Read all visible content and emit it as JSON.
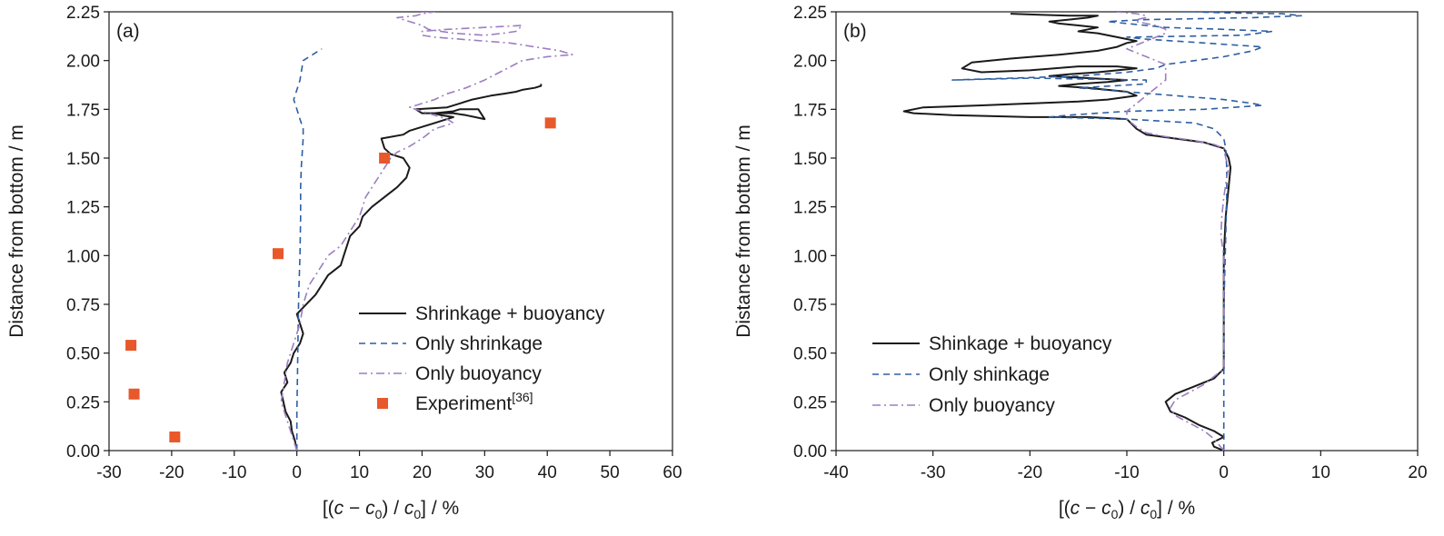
{
  "chart_data": [
    {
      "type": "line",
      "panel_label": "(a)",
      "xlabel": "[(c − c0) / c0] / %",
      "ylabel": "Distance from bottom / m",
      "xlim": [
        -30,
        60
      ],
      "ylim": [
        0,
        2.25
      ],
      "xticks": [
        -30,
        -20,
        -10,
        0,
        10,
        20,
        30,
        40,
        50,
        60
      ],
      "yticks": [
        0,
        0.25,
        0.5,
        0.75,
        1.0,
        1.25,
        1.5,
        1.75,
        2.0,
        2.25
      ],
      "grid": false,
      "legend_position": "lower-right",
      "series": [
        {
          "name": "Shrinkage + buoyancy",
          "style": "solid",
          "color": "#1a1a1a",
          "x": [
            0,
            -0.3,
            -0.8,
            -1,
            -1.8,
            -2.5,
            -1.5,
            -2,
            -1,
            -0.5,
            0.5,
            1,
            0,
            3,
            5,
            7,
            7.5,
            8,
            8.5,
            10,
            10.5,
            12,
            14,
            16,
            17.5,
            18,
            17,
            15,
            14,
            13.5,
            17,
            18,
            20,
            22,
            24,
            25,
            23,
            22,
            25,
            26,
            29,
            30,
            27,
            25,
            20,
            19,
            24,
            26,
            28,
            31,
            33,
            35,
            36,
            38,
            39,
            39
          ],
          "y": [
            0,
            0.05,
            0.1,
            0.15,
            0.2,
            0.3,
            0.35,
            0.4,
            0.45,
            0.5,
            0.55,
            0.6,
            0.7,
            0.8,
            0.9,
            0.95,
            1.0,
            1.05,
            1.1,
            1.15,
            1.2,
            1.25,
            1.3,
            1.35,
            1.4,
            1.45,
            1.5,
            1.52,
            1.55,
            1.6,
            1.62,
            1.64,
            1.66,
            1.68,
            1.7,
            1.71,
            1.72,
            1.73,
            1.74,
            1.75,
            1.75,
            1.7,
            1.72,
            1.73,
            1.73,
            1.75,
            1.76,
            1.78,
            1.8,
            1.82,
            1.83,
            1.84,
            1.85,
            1.86,
            1.87,
            1.88
          ]
        },
        {
          "name": "Only shrinkage",
          "style": "dash",
          "color": "#2e5fa3",
          "x": [
            0,
            0,
            0.1,
            0.2,
            0.3,
            0.5,
            0.6,
            0.6,
            0.7,
            0.8,
            0.9,
            1,
            1,
            0.5,
            0,
            -0.5,
            0,
            0.5,
            1,
            2,
            3,
            4
          ],
          "y": [
            0,
            0.2,
            0.4,
            0.6,
            0.8,
            1.0,
            1.2,
            1.35,
            1.45,
            1.5,
            1.55,
            1.6,
            1.65,
            1.7,
            1.75,
            1.8,
            1.85,
            1.9,
            2.0,
            2.02,
            2.04,
            2.06
          ]
        },
        {
          "name": "Only buoyancy",
          "style": "dashdot",
          "color": "#9b7ec0",
          "x": [
            0,
            -0.5,
            -1.5,
            -2.5,
            -2,
            -1.5,
            -0.5,
            0.5,
            1,
            2,
            3,
            4,
            5,
            7,
            8,
            9,
            10,
            10.5,
            11,
            12,
            13,
            14,
            15,
            16,
            18,
            20,
            22,
            25,
            24,
            22,
            20,
            18,
            20,
            22,
            24,
            27,
            30,
            33,
            36,
            40,
            44,
            42,
            38,
            34,
            30,
            26,
            22,
            20,
            20,
            24,
            30,
            36,
            35,
            33,
            30,
            25,
            21,
            20,
            19,
            18,
            17,
            16,
            19,
            20,
            21,
            22,
            21,
            20,
            21
          ],
          "y": [
            0,
            0.05,
            0.15,
            0.25,
            0.35,
            0.45,
            0.55,
            0.65,
            0.75,
            0.85,
            0.9,
            0.95,
            1.0,
            1.05,
            1.1,
            1.15,
            1.2,
            1.25,
            1.3,
            1.35,
            1.4,
            1.45,
            1.5,
            1.53,
            1.56,
            1.6,
            1.65,
            1.68,
            1.7,
            1.72,
            1.74,
            1.76,
            1.78,
            1.8,
            1.83,
            1.86,
            1.9,
            1.95,
            2.0,
            2.02,
            2.03,
            2.05,
            2.07,
            2.09,
            2.1,
            2.11,
            2.12,
            2.13,
            2.15,
            2.16,
            2.17,
            2.18,
            2.15,
            2.14,
            2.13,
            2.14,
            2.16,
            2.18,
            2.19,
            2.2,
            2.21,
            2.22,
            2.23,
            2.24,
            2.245,
            2.25,
            2.25,
            2.25,
            2.25
          ]
        },
        {
          "name": "Experiment[36]",
          "style": "marker",
          "color": "#e8582b",
          "x": [
            -19.5,
            -26,
            -26.5,
            -3,
            14,
            40.5
          ],
          "y": [
            0.07,
            0.29,
            0.54,
            1.01,
            1.5,
            1.68
          ]
        }
      ]
    },
    {
      "type": "line",
      "panel_label": "(b)",
      "xlabel": "[(c − c0) / c0] / %",
      "ylabel": "Distance from bottom / m",
      "xlim": [
        -40,
        20
      ],
      "ylim": [
        0,
        2.25
      ],
      "xticks": [
        -40,
        -30,
        -20,
        -10,
        0,
        10,
        20
      ],
      "yticks": [
        0,
        0.25,
        0.5,
        0.75,
        1.0,
        1.25,
        1.5,
        1.75,
        2.0,
        2.25
      ],
      "grid": false,
      "legend_position": "lower-left",
      "series": [
        {
          "name": "Shinkage + buoyancy",
          "style": "solid",
          "color": "#1a1a1a",
          "x": [
            0,
            -1,
            -1.2,
            0,
            -1,
            -2.5,
            -4,
            -5.5,
            -6,
            -5,
            -3,
            -1,
            0,
            0,
            0,
            0,
            0.2,
            0.5,
            0.7,
            0.5,
            0,
            -2,
            -5,
            -8,
            -9,
            -10,
            -14,
            -20,
            -28,
            -32,
            -33,
            -31,
            -25,
            -20,
            -15,
            -12,
            -9,
            -10,
            -14,
            -17,
            -15,
            -12,
            -10,
            -14,
            -18,
            -16,
            -13,
            -11,
            -9,
            -11,
            -15,
            -20,
            -25,
            -27,
            -26,
            -22,
            -17,
            -13,
            -11,
            -10,
            -9,
            -11,
            -13,
            -15,
            -14,
            -13,
            -15,
            -17,
            -18,
            -16,
            -14,
            -13,
            -16,
            -19,
            -22
          ],
          "y": [
            0,
            0.02,
            0.04,
            0.07,
            0.1,
            0.13,
            0.17,
            0.2,
            0.25,
            0.29,
            0.33,
            0.37,
            0.42,
            0.6,
            0.8,
            1.0,
            1.2,
            1.35,
            1.45,
            1.5,
            1.55,
            1.58,
            1.6,
            1.62,
            1.65,
            1.7,
            1.71,
            1.71,
            1.72,
            1.73,
            1.74,
            1.76,
            1.77,
            1.78,
            1.79,
            1.8,
            1.82,
            1.84,
            1.86,
            1.87,
            1.88,
            1.89,
            1.9,
            1.91,
            1.92,
            1.93,
            1.94,
            1.95,
            1.96,
            1.97,
            1.97,
            1.95,
            1.94,
            1.96,
            1.99,
            2.01,
            2.03,
            2.05,
            2.07,
            2.09,
            2.1,
            2.12,
            2.14,
            2.15,
            2.16,
            2.17,
            2.18,
            2.19,
            2.2,
            2.21,
            2.22,
            2.23,
            2.23,
            2.235,
            2.24
          ]
        },
        {
          "name": "Only shinkage",
          "style": "dash",
          "color": "#2e5fa3",
          "x": [
            0,
            0,
            0,
            0,
            0,
            0.1,
            0.2,
            0.3,
            0.3,
            0.2,
            0,
            -1,
            -3,
            -10,
            -18,
            -16,
            -13,
            -10,
            -2,
            4,
            3,
            0,
            -5,
            -10,
            -15,
            -8,
            -8,
            -20,
            -28,
            -22,
            -15,
            -10,
            -7,
            -6,
            -3,
            0,
            3,
            4,
            -2,
            -5,
            -8,
            -10,
            2,
            5,
            0,
            -6,
            -8,
            -10,
            -12,
            -8,
            3,
            8,
            6,
            0,
            -3,
            -5
          ],
          "y": [
            0,
            0.1,
            0.3,
            0.5,
            0.7,
            0.9,
            1.1,
            1.3,
            1.45,
            1.55,
            1.6,
            1.65,
            1.68,
            1.7,
            1.71,
            1.72,
            1.73,
            1.74,
            1.75,
            1.77,
            1.78,
            1.8,
            1.82,
            1.84,
            1.86,
            1.88,
            1.9,
            1.91,
            1.9,
            1.91,
            1.92,
            1.94,
            1.96,
            1.98,
            2.0,
            2.02,
            2.05,
            2.07,
            2.09,
            2.1,
            2.11,
            2.12,
            2.13,
            2.15,
            2.16,
            2.17,
            2.18,
            2.19,
            2.2,
            2.21,
            2.22,
            2.23,
            2.24,
            2.245,
            2.25,
            2.25
          ]
        },
        {
          "name": "Only buoyancy",
          "style": "dashdot",
          "color": "#9b7ec0",
          "x": [
            0,
            -0.5,
            -1,
            -2,
            -3.5,
            -5,
            -5.5,
            -5,
            -3.5,
            -2,
            -1,
            0,
            0,
            0,
            0,
            -0.3,
            -0.2,
            0,
            0.3,
            0.5,
            0.2,
            0,
            -1,
            -3,
            -6,
            -8,
            -9,
            -10,
            -10,
            -9,
            -8,
            -7,
            -6,
            -6,
            -6,
            -7,
            -8,
            -9,
            -10,
            -9,
            -8,
            -7,
            -6,
            -6,
            -7,
            -8,
            -9,
            -9,
            -8,
            -8,
            -9,
            -10,
            -11
          ],
          "y": [
            0,
            0.03,
            0.06,
            0.1,
            0.14,
            0.18,
            0.22,
            0.26,
            0.3,
            0.34,
            0.38,
            0.42,
            0.6,
            0.8,
            1.0,
            1.1,
            1.2,
            1.3,
            1.4,
            1.45,
            1.5,
            1.55,
            1.57,
            1.59,
            1.61,
            1.63,
            1.66,
            1.7,
            1.74,
            1.78,
            1.82,
            1.86,
            1.9,
            1.94,
            1.98,
            2.0,
            2.02,
            2.04,
            2.06,
            2.08,
            2.1,
            2.12,
            2.14,
            2.16,
            2.18,
            2.19,
            2.2,
            2.21,
            2.22,
            2.23,
            2.24,
            2.245,
            2.25
          ]
        }
      ]
    }
  ]
}
